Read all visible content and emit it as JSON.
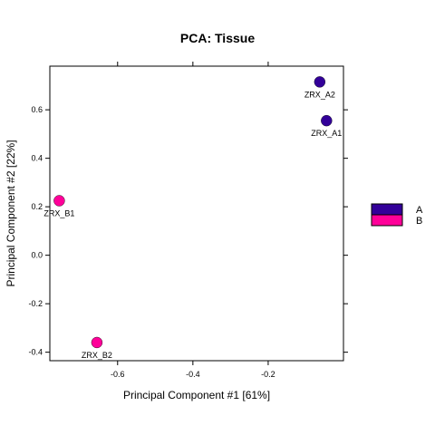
{
  "chart_data": {
    "type": "scatter",
    "title": "PCA: Tissue",
    "xlabel": "Principal Component #1 [61%]",
    "ylabel": "Principal Component #2 [22%]",
    "xlim": [
      -0.78,
      -0.0
    ],
    "ylim": [
      -0.435,
      0.78
    ],
    "xticks": [
      -0.6,
      -0.4,
      -0.2
    ],
    "yticks": [
      -0.4,
      -0.2,
      0.0,
      0.2,
      0.4,
      0.6
    ],
    "xtick_labels": [
      "-0.6",
      "-0.4",
      "-0.2"
    ],
    "ytick_labels": [
      "-0.4",
      "-0.2",
      "0.0",
      "0.2",
      "0.4",
      "0.6"
    ],
    "grid": false,
    "legend_position": "right",
    "series": [
      {
        "name": "A",
        "color": "#330099",
        "points": [
          {
            "label": "ZRX_A1",
            "x": -0.045,
            "y": 0.555
          },
          {
            "label": "ZRX_A2",
            "x": -0.063,
            "y": 0.715
          }
        ]
      },
      {
        "name": "B",
        "color": "#ff0099",
        "points": [
          {
            "label": "ZRX_B1",
            "x": -0.755,
            "y": 0.225
          },
          {
            "label": "ZRX_B2",
            "x": -0.655,
            "y": -0.36
          }
        ]
      }
    ]
  }
}
